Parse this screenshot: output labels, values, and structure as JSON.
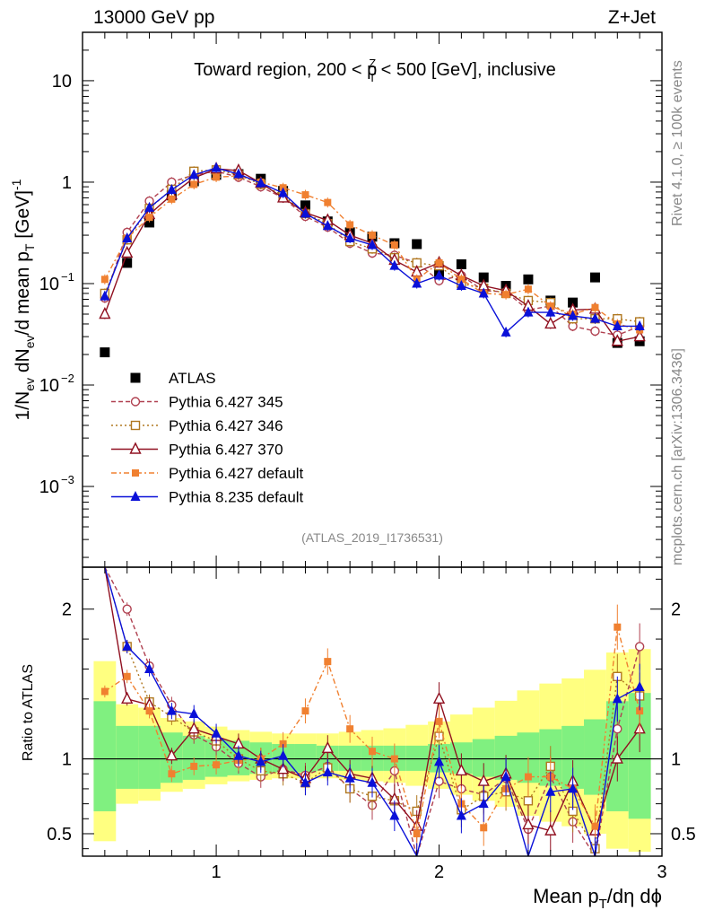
{
  "header": {
    "energy_label": "13000 GeV pp",
    "process_label": "Z+Jet"
  },
  "side_labels": {
    "rivet": "Rivet 4.1.0, ≥ 100k events",
    "mcplots": "mcplots.cern.ch [arXiv:1306.3436]"
  },
  "analysis_id": "(ATLAS_2019_I1736531)",
  "chart_data": {
    "type": "line",
    "title_parts": {
      "pre": "Toward region, 200 < p",
      "sup": "Z",
      "sub": "T",
      "post": " < 500 [GeV], inclusive"
    },
    "ylabel_main_parts": {
      "a": "1/N",
      "a_sub": "ev",
      "b": " dN",
      "b_sub": "ev",
      "c": "/d mean p",
      "c_sub": "T",
      "d": " [GeV]",
      "d_sup": "-1"
    },
    "ylabel_ratio": "Ratio to ATLAS",
    "xlabel_parts": {
      "a": "Mean p",
      "a_sub": "T",
      "b": "/dη dϕ"
    },
    "xlim": [
      0.4,
      3.0
    ],
    "ylim_main": [
      0.00016,
      30
    ],
    "ylim_ratio": [
      0.35,
      2.28
    ],
    "yscale_main": "log",
    "x_ticks": [
      1,
      2,
      3
    ],
    "main_yticks": [
      {
        "v": 0.001,
        "base": "10",
        "exp": "−3"
      },
      {
        "v": 0.01,
        "base": "10",
        "exp": "−2"
      },
      {
        "v": 0.1,
        "base": "10",
        "exp": "−1"
      },
      {
        "v": 1,
        "base": "1",
        "exp": ""
      },
      {
        "v": 10,
        "base": "10",
        "exp": ""
      }
    ],
    "ratio_yticks": [
      {
        "v": 0.5,
        "label": "0.5"
      },
      {
        "v": 1,
        "label": "1"
      },
      {
        "v": 2,
        "label": "2"
      }
    ],
    "x": [
      0.5,
      0.6,
      0.7,
      0.8,
      0.9,
      1.0,
      1.1,
      1.2,
      1.3,
      1.4,
      1.5,
      1.6,
      1.7,
      1.8,
      1.9,
      2.0,
      2.1,
      2.2,
      2.3,
      2.4,
      2.5,
      2.6,
      2.7,
      2.8,
      2.9
    ],
    "ratio_band_inner": [
      0.65,
      0.8,
      0.8,
      0.84,
      0.86,
      0.88,
      0.89,
      0.9,
      0.91,
      0.91,
      0.92,
      0.92,
      0.92,
      0.92,
      0.92,
      0.91,
      0.9,
      0.88,
      0.86,
      0.84,
      0.82,
      0.8,
      0.76,
      0.65,
      0.6
    ],
    "ratio_band_outer": [
      0.45,
      0.7,
      0.72,
      0.78,
      0.8,
      0.83,
      0.85,
      0.86,
      0.87,
      0.87,
      0.87,
      0.86,
      0.85,
      0.84,
      0.82,
      0.8,
      0.76,
      0.72,
      0.68,
      0.62,
      0.58,
      0.55,
      0.5,
      0.4,
      0.38
    ],
    "series": [
      {
        "name": "ATLAS",
        "color": "#000000",
        "marker": "square-filled",
        "dash": "none",
        "values": [
          0.021,
          0.16,
          0.4,
          0.74,
          1.02,
          1.18,
          1.2,
          1.08,
          0.82,
          0.59,
          0.41,
          0.32,
          0.29,
          0.25,
          0.245,
          0.125,
          0.155,
          0.115,
          0.095,
          0.11,
          0.068,
          0.065,
          0.115,
          0.026,
          0.027
        ],
        "ratio": []
      },
      {
        "name": "Pythia 6.427 345",
        "color": "#b04050",
        "marker": "circle-open",
        "dash": "5,3",
        "values": [
          0.072,
          0.32,
          0.65,
          1.0,
          1.18,
          1.28,
          1.12,
          0.9,
          0.7,
          0.46,
          0.36,
          0.25,
          0.2,
          0.19,
          0.16,
          0.107,
          0.12,
          0.085,
          0.083,
          0.055,
          0.06,
          0.038,
          0.034,
          0.031,
          0.038
        ],
        "ratio": [
          3.4,
          2.0,
          1.62,
          1.36,
          1.16,
          1.08,
          0.97,
          0.88,
          0.93,
          0.89,
          0.95,
          0.8,
          0.69,
          0.92,
          0.33,
          0.85,
          0.8,
          0.76,
          0.87,
          0.53,
          0.88,
          0.58,
          0.3,
          1.2,
          1.75
        ]
      },
      {
        "name": "Pythia 6.427 346",
        "color": "#b07820",
        "marker": "square-open",
        "dash": "2,3",
        "values": [
          0.08,
          0.27,
          0.55,
          0.85,
          1.28,
          1.32,
          1.18,
          0.95,
          0.74,
          0.49,
          0.39,
          0.26,
          0.22,
          0.18,
          0.16,
          0.15,
          0.1,
          0.09,
          0.08,
          0.068,
          0.065,
          0.045,
          0.045,
          0.045,
          0.042
        ],
        "ratio": [
          3.8,
          1.75,
          1.38,
          1.28,
          1.18,
          1.12,
          1.0,
          0.92,
          0.9,
          0.84,
          0.94,
          0.8,
          0.75,
          0.72,
          0.65,
          1.15,
          0.66,
          0.75,
          0.78,
          0.72,
          0.95,
          0.65,
          0.4,
          1.55,
          1.42
        ]
      },
      {
        "name": "Pythia 6.427 370",
        "color": "#901020",
        "marker": "triangle-open",
        "dash": "none",
        "values": [
          0.05,
          0.2,
          0.48,
          0.75,
          1.1,
          1.35,
          1.3,
          0.98,
          0.7,
          0.5,
          0.42,
          0.3,
          0.25,
          0.17,
          0.13,
          0.16,
          0.12,
          0.095,
          0.085,
          0.06,
          0.04,
          0.055,
          0.056,
          0.027,
          0.03
        ],
        "ratio": [
          2.3,
          1.4,
          1.36,
          1.02,
          1.2,
          1.15,
          1.1,
          1.0,
          0.93,
          0.87,
          1.07,
          0.9,
          0.87,
          0.73,
          0.55,
          1.4,
          0.92,
          0.85,
          0.9,
          0.56,
          0.52,
          0.85,
          0.52,
          1.0,
          1.2
        ]
      },
      {
        "name": "Pythia 6.427 default",
        "color": "#f08030",
        "marker": "square-filled",
        "dash": "6,3,2,3",
        "values": [
          0.11,
          0.28,
          0.45,
          0.68,
          0.95,
          1.12,
          1.15,
          1.0,
          0.88,
          0.75,
          0.63,
          0.38,
          0.3,
          0.24,
          0.11,
          0.16,
          0.11,
          0.08,
          0.078,
          0.088,
          0.06,
          0.05,
          0.058,
          0.04,
          0.035
        ],
        "ratio": [
          1.45,
          1.55,
          1.32,
          0.9,
          0.95,
          0.96,
          0.99,
          1.0,
          1.1,
          1.32,
          1.65,
          1.2,
          1.05,
          1.0,
          0.5,
          1.25,
          0.7,
          0.54,
          0.8,
          0.88,
          0.88,
          0.8,
          0.55,
          1.88,
          1.32
        ]
      },
      {
        "name": "Pythia 8.235 default",
        "color": "#0a10d8",
        "marker": "triangle-filled",
        "dash": "none",
        "values": [
          0.075,
          0.28,
          0.56,
          0.84,
          1.18,
          1.38,
          1.2,
          0.98,
          0.78,
          0.49,
          0.37,
          0.28,
          0.24,
          0.15,
          0.1,
          0.12,
          0.095,
          0.08,
          0.033,
          0.052,
          0.052,
          0.048,
          0.045,
          0.038,
          0.038
        ],
        "ratio": [
          3.6,
          1.75,
          1.6,
          1.32,
          1.3,
          1.17,
          1.02,
          0.98,
          1.02,
          0.84,
          0.91,
          0.87,
          0.84,
          0.62,
          0.33,
          0.98,
          0.62,
          0.7,
          0.88,
          0.3,
          0.78,
          0.8,
          0.33,
          1.4,
          1.48
        ]
      }
    ]
  }
}
